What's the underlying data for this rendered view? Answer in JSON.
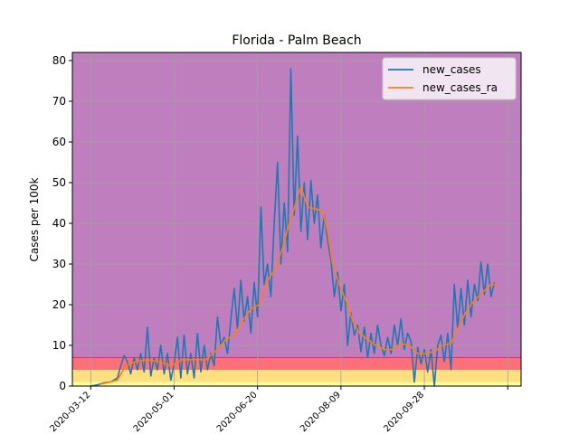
{
  "chart_data": {
    "type": "line",
    "title": "Florida - Palm Beach",
    "ylabel": "Cases per 100k",
    "xlabel": "",
    "xlim": [
      "2020-03-01",
      "2020-11-25"
    ],
    "ylim": [
      0,
      82
    ],
    "y_ticks": [
      0,
      10,
      20,
      30,
      40,
      50,
      60,
      70,
      80
    ],
    "x_ticks": [
      "2020-03-12",
      "2020-05-01",
      "2020-06-20",
      "2020-08-09",
      "2020-09-28",
      "2020-11-17"
    ],
    "x_tick_labels": [
      "2020-03-12",
      "2020-05-01",
      "2020-06-20",
      "2020-08-09",
      "2020-09-28",
      ""
    ],
    "grid": true,
    "legend_position": "top-right",
    "background_bands": [
      {
        "y0": 7,
        "y1": 82,
        "color": "#bf7fbf"
      },
      {
        "y0": 4,
        "y1": 7,
        "color": "#ff6f7a"
      },
      {
        "y0": 1,
        "y1": 4,
        "color": "#ffdf7f"
      },
      {
        "y0": 0,
        "y1": 1,
        "color": "#ffff99"
      }
    ],
    "series": [
      {
        "name": "new_cases",
        "color": "#1f77b4",
        "points": [
          [
            "2020-03-12",
            0
          ],
          [
            "2020-03-16",
            0.3
          ],
          [
            "2020-03-20",
            0.8
          ],
          [
            "2020-03-24",
            1.0
          ],
          [
            "2020-03-28",
            2.0
          ],
          [
            "2020-03-30",
            5.0
          ],
          [
            "2020-04-01",
            7.5
          ],
          [
            "2020-04-03",
            6.0
          ],
          [
            "2020-04-05",
            3.0
          ],
          [
            "2020-04-07",
            7.0
          ],
          [
            "2020-04-09",
            4.0
          ],
          [
            "2020-04-11",
            8.0
          ],
          [
            "2020-04-13",
            3.5
          ],
          [
            "2020-04-15",
            14.5
          ],
          [
            "2020-04-17",
            2.5
          ],
          [
            "2020-04-19",
            7.0
          ],
          [
            "2020-04-21",
            4.0
          ],
          [
            "2020-04-23",
            10.0
          ],
          [
            "2020-04-25",
            3.0
          ],
          [
            "2020-04-27",
            8.0
          ],
          [
            "2020-04-29",
            1.5
          ],
          [
            "2020-05-01",
            5.5
          ],
          [
            "2020-05-03",
            12.0
          ],
          [
            "2020-05-05",
            2.0
          ],
          [
            "2020-05-07",
            12.5
          ],
          [
            "2020-05-09",
            3.0
          ],
          [
            "2020-05-11",
            8.0
          ],
          [
            "2020-05-13",
            2.0
          ],
          [
            "2020-05-15",
            13.0
          ],
          [
            "2020-05-17",
            3.5
          ],
          [
            "2020-05-19",
            10.0
          ],
          [
            "2020-05-21",
            4.0
          ],
          [
            "2020-05-23",
            8.0
          ],
          [
            "2020-05-25",
            5.0
          ],
          [
            "2020-05-27",
            17.0
          ],
          [
            "2020-05-29",
            10.0
          ],
          [
            "2020-05-31",
            12.0
          ],
          [
            "2020-06-02",
            8.0
          ],
          [
            "2020-06-04",
            16.5
          ],
          [
            "2020-06-06",
            24.0
          ],
          [
            "2020-06-08",
            14.0
          ],
          [
            "2020-06-10",
            26.0
          ],
          [
            "2020-06-12",
            16.0
          ],
          [
            "2020-06-14",
            22.0
          ],
          [
            "2020-06-16",
            13.0
          ],
          [
            "2020-06-18",
            25.5
          ],
          [
            "2020-06-20",
            17.0
          ],
          [
            "2020-06-22",
            44.0
          ],
          [
            "2020-06-24",
            25.0
          ],
          [
            "2020-06-26",
            30.0
          ],
          [
            "2020-06-28",
            22.0
          ],
          [
            "2020-06-30",
            40.0
          ],
          [
            "2020-07-02",
            55.0
          ],
          [
            "2020-07-04",
            30.0
          ],
          [
            "2020-07-06",
            45.0
          ],
          [
            "2020-07-08",
            33.0
          ],
          [
            "2020-07-10",
            78.0
          ],
          [
            "2020-07-12",
            42.0
          ],
          [
            "2020-07-14",
            61.5
          ],
          [
            "2020-07-16",
            38.0
          ],
          [
            "2020-07-18",
            50.0
          ],
          [
            "2020-07-20",
            36.0
          ],
          [
            "2020-07-22",
            50.5
          ],
          [
            "2020-07-24",
            40.0
          ],
          [
            "2020-07-26",
            47.0
          ],
          [
            "2020-07-28",
            34.0
          ],
          [
            "2020-07-30",
            42.0
          ],
          [
            "2020-08-01",
            36.0
          ],
          [
            "2020-08-03",
            31.0
          ],
          [
            "2020-08-05",
            22.0
          ],
          [
            "2020-08-07",
            28.0
          ],
          [
            "2020-08-09",
            18.5
          ],
          [
            "2020-08-11",
            25.0
          ],
          [
            "2020-08-13",
            10.0
          ],
          [
            "2020-08-15",
            18.0
          ],
          [
            "2020-08-17",
            12.5
          ],
          [
            "2020-08-19",
            15.0
          ],
          [
            "2020-08-21",
            8.5
          ],
          [
            "2020-08-23",
            14.5
          ],
          [
            "2020-08-25",
            7.0
          ],
          [
            "2020-08-27",
            13.0
          ],
          [
            "2020-08-29",
            8.0
          ],
          [
            "2020-08-31",
            15.0
          ],
          [
            "2020-09-02",
            10.0
          ],
          [
            "2020-09-04",
            7.5
          ],
          [
            "2020-09-06",
            12.0
          ],
          [
            "2020-09-08",
            8.0
          ],
          [
            "2020-09-10",
            15.0
          ],
          [
            "2020-09-12",
            10.0
          ],
          [
            "2020-09-14",
            16.5
          ],
          [
            "2020-09-16",
            9.0
          ],
          [
            "2020-09-18",
            13.0
          ],
          [
            "2020-09-20",
            11.0
          ],
          [
            "2020-09-22",
            1.0
          ],
          [
            "2020-09-24",
            9.5
          ],
          [
            "2020-09-26",
            5.5
          ],
          [
            "2020-09-28",
            9.0
          ],
          [
            "2020-09-30",
            3.5
          ],
          [
            "2020-10-02",
            9.0
          ],
          [
            "2020-10-04",
            0
          ],
          [
            "2020-10-06",
            10.0
          ],
          [
            "2020-10-08",
            12.5
          ],
          [
            "2020-10-10",
            6.0
          ],
          [
            "2020-10-12",
            13.0
          ],
          [
            "2020-10-14",
            4.0
          ],
          [
            "2020-10-16",
            25.0
          ],
          [
            "2020-10-18",
            14.0
          ],
          [
            "2020-10-20",
            24.0
          ],
          [
            "2020-10-22",
            15.0
          ],
          [
            "2020-10-24",
            26.0
          ],
          [
            "2020-10-26",
            17.0
          ],
          [
            "2020-10-28",
            25.0
          ],
          [
            "2020-10-30",
            21.0
          ],
          [
            "2020-11-01",
            30.5
          ],
          [
            "2020-11-03",
            22.5
          ],
          [
            "2020-11-05",
            30.0
          ],
          [
            "2020-11-07",
            22.0
          ],
          [
            "2020-11-09",
            25.5
          ]
        ]
      },
      {
        "name": "new_cases_ra",
        "color": "#ff7f0e",
        "points": [
          [
            "2020-03-18",
            0.5
          ],
          [
            "2020-03-24",
            1.0
          ],
          [
            "2020-03-28",
            1.5
          ],
          [
            "2020-04-02",
            5.0
          ],
          [
            "2020-04-08",
            6.0
          ],
          [
            "2020-04-15",
            6.5
          ],
          [
            "2020-04-22",
            6.0
          ],
          [
            "2020-04-29",
            5.0
          ],
          [
            "2020-05-06",
            6.5
          ],
          [
            "2020-05-13",
            6.5
          ],
          [
            "2020-05-20",
            6.5
          ],
          [
            "2020-05-27",
            9.0
          ],
          [
            "2020-06-01",
            11.5
          ],
          [
            "2020-06-06",
            12.5
          ],
          [
            "2020-06-11",
            16.0
          ],
          [
            "2020-06-16",
            19.0
          ],
          [
            "2020-06-21",
            20.0
          ],
          [
            "2020-06-26",
            26.0
          ],
          [
            "2020-07-01",
            29.0
          ],
          [
            "2020-07-05",
            34.0
          ],
          [
            "2020-07-09",
            40.0
          ],
          [
            "2020-07-13",
            45.0
          ],
          [
            "2020-07-16",
            49.0
          ],
          [
            "2020-07-20",
            44.0
          ],
          [
            "2020-07-25",
            43.5
          ],
          [
            "2020-07-29",
            43.0
          ],
          [
            "2020-08-01",
            38.0
          ],
          [
            "2020-08-04",
            30.0
          ],
          [
            "2020-08-08",
            25.0
          ],
          [
            "2020-08-12",
            21.0
          ],
          [
            "2020-08-16",
            16.0
          ],
          [
            "2020-08-20",
            13.0
          ],
          [
            "2020-08-25",
            11.5
          ],
          [
            "2020-08-30",
            10.0
          ],
          [
            "2020-09-04",
            9.0
          ],
          [
            "2020-09-09",
            9.0
          ],
          [
            "2020-09-14",
            10.5
          ],
          [
            "2020-09-19",
            10.0
          ],
          [
            "2020-09-24",
            8.0
          ],
          [
            "2020-09-29",
            8.0
          ],
          [
            "2020-10-04",
            8.5
          ],
          [
            "2020-10-09",
            10.0
          ],
          [
            "2020-10-14",
            10.5
          ],
          [
            "2020-10-19",
            15.0
          ],
          [
            "2020-10-24",
            19.0
          ],
          [
            "2020-10-29",
            21.5
          ],
          [
            "2020-11-03",
            23.5
          ],
          [
            "2020-11-07",
            25.0
          ],
          [
            "2020-11-11",
            25.0
          ]
        ]
      }
    ]
  }
}
